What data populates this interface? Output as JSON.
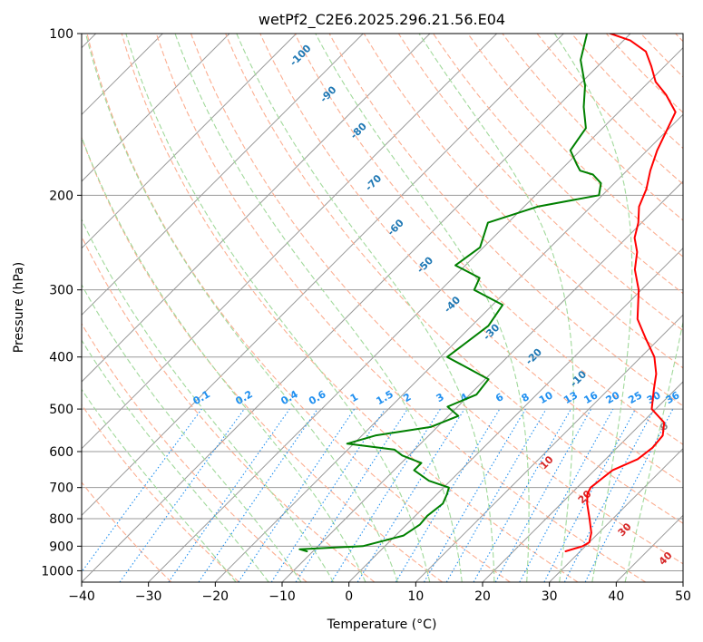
{
  "chart_data": {
    "type": "line",
    "subtype": "skew-t log-p sounding",
    "title": "wetPf2_C2E6.2025.296.21.56.E04",
    "xlabel": "Temperature (°C)",
    "ylabel": "Pressure (hPa)",
    "xlim": [
      -40,
      50
    ],
    "ylim": [
      1050,
      100
    ],
    "y_scale": "log",
    "grid": true,
    "x_ticks": [
      "−40",
      "−30",
      "−20",
      "−10",
      "0",
      "10",
      "20",
      "30",
      "40",
      "50"
    ],
    "y_ticks": [
      "100",
      "200",
      "300",
      "400",
      "500",
      "600",
      "700",
      "800",
      "900",
      "1000"
    ],
    "colors": {
      "temperature": "#ff0000",
      "dewpoint": "#008000",
      "isotherm": "#999999",
      "dry_adiabat": "#fcae91",
      "moist_adiabat": "#a1d99b",
      "mixing_ratio": "#1f8ff0",
      "wetbulb_label": "#1f78b4",
      "saturation_label": "#d62728"
    },
    "series": [
      {
        "key": "temperature",
        "x": [
          27.8,
          29.6,
          30.0,
          28.9,
          26.5,
          23.9,
          22.5,
          22.0,
          22.4,
          22.7,
          24.8,
          25.3,
          25.0,
          23.3,
          19.4,
          16.8,
          14.8,
          12.0,
          8.0,
          3.8,
          -0.4,
          -4.0,
          -6.3,
          -8.8,
          -10.5,
          -12.8,
          -14.3,
          -16.5,
          -18.5,
          -20.0,
          -21.5,
          -25.5,
          -29.0,
          -32.0,
          -35.0,
          -39.0,
          -43.0
        ],
        "y": [
          920,
          900,
          885,
          850,
          800,
          750,
          720,
          700,
          670,
          650,
          620,
          590,
          560,
          530,
          500,
          460,
          430,
          400,
          370,
          340,
          300,
          275,
          255,
          240,
          225,
          210,
          195,
          180,
          165,
          152,
          140,
          130,
          123,
          115,
          108,
          103,
          100
        ]
      },
      {
        "key": "dewpoint",
        "x": [
          -10.9,
          -12.3,
          -3.3,
          1.2,
          2.0,
          1.8,
          2.3,
          1.5,
          0.8,
          -3.2,
          -7.0,
          -7.0,
          -11.0,
          -13.0,
          -21.0,
          -18.0,
          -11.0,
          -8.5,
          -11.5,
          -9.0,
          -9.5,
          -19.0,
          -17.5,
          -18.5,
          -25.0,
          -26.0,
          -31.5,
          -30.5,
          -33.0,
          -28.0,
          -20.5,
          -22.0,
          -24.5,
          -27.0,
          -28.5,
          -31.5,
          -32.5,
          -36.0,
          -39.0,
          -43.5,
          -46.5
        ],
        "y": [
          920,
          912,
          900,
          860,
          820,
          790,
          750,
          720,
          700,
          680,
          650,
          630,
          610,
          595,
          580,
          560,
          540,
          515,
          495,
          470,
          440,
          400,
          350,
          320,
          300,
          285,
          270,
          250,
          225,
          210,
          200,
          190,
          183,
          180,
          175,
          165,
          150,
          137,
          125,
          112,
          100
        ]
      }
    ],
    "mixing_ratio_labels": [
      "0.1",
      "0.2",
      "0.4",
      "0.6",
      "1",
      "1.5",
      "2",
      "3",
      "4",
      "6",
      "8",
      "10",
      "13",
      "16",
      "20",
      "25",
      "30",
      "36"
    ],
    "wetbulb_labels": [
      "-100",
      "-90",
      "-80",
      "-70",
      "-60",
      "-50",
      "-40",
      "-30",
      "-20",
      "-10",
      "0"
    ],
    "saturation_labels": [
      "10",
      "20",
      "30",
      "40"
    ]
  }
}
